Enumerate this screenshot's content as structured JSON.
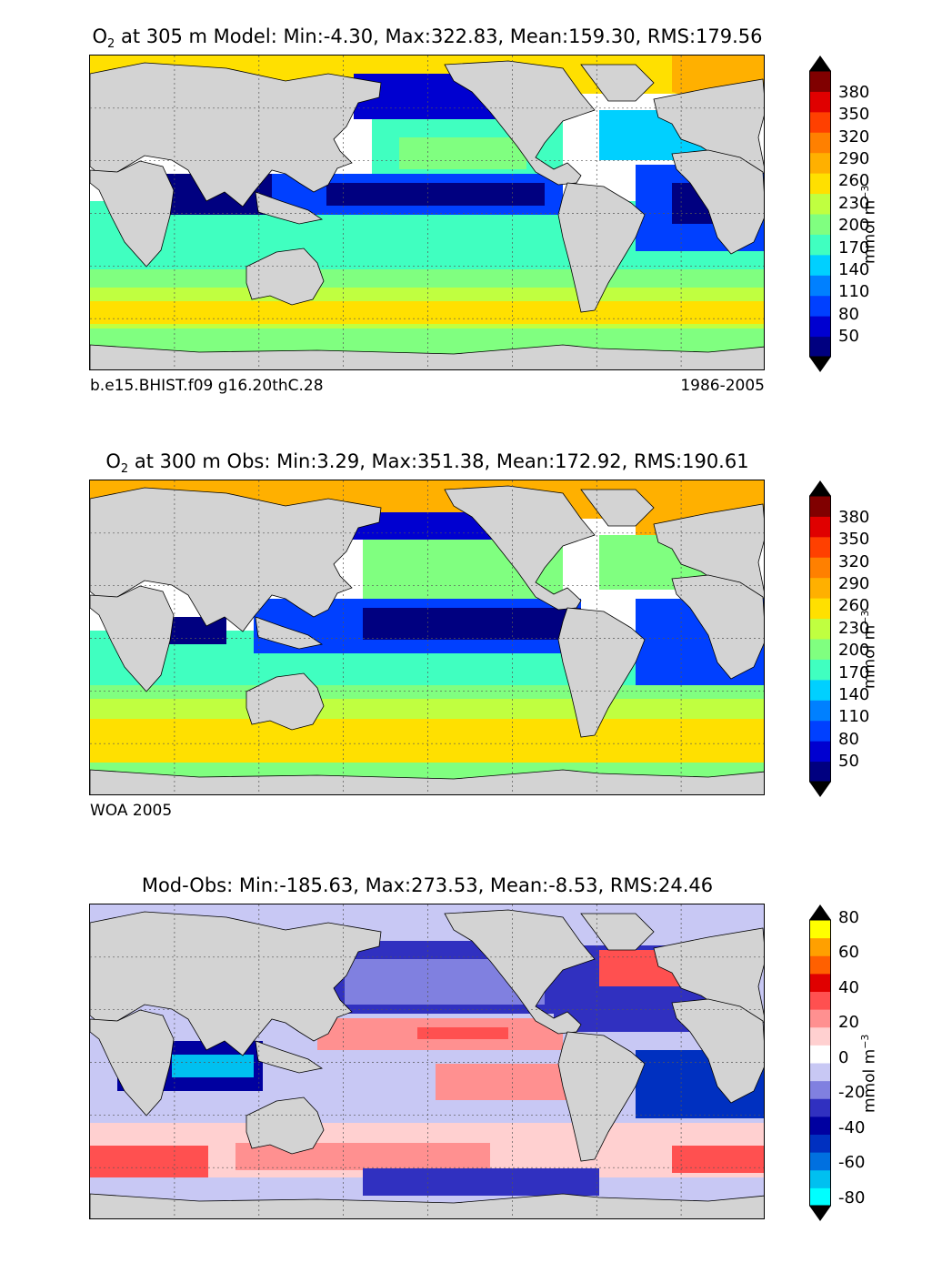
{
  "panels": [
    {
      "title_prefix": "O",
      "title_sub": "2",
      "title_rest": " at 305 m Model: Min:-4.30, Max:322.83, Mean:159.30, RMS:179.56",
      "footer_left": "b.e15.BHIST.f09 g16.20thC.28",
      "footer_right": "1986-2005",
      "colorbar_ticks": [
        "380",
        "350",
        "320",
        "290",
        "260",
        "230",
        "200",
        "170",
        "140",
        "110",
        "80",
        "50"
      ],
      "colorbar_unit": "mmol m",
      "colorbar_unit_exp": "−3",
      "colorbar_colors": [
        "#000080",
        "#0000d0",
        "#0040ff",
        "#0080ff",
        "#00d0ff",
        "#40ffc0",
        "#80ff80",
        "#c0ff40",
        "#ffe000",
        "#ffb000",
        "#ff8000",
        "#ff4000",
        "#e00000",
        "#800000"
      ]
    },
    {
      "title_prefix": "O",
      "title_sub": "2",
      "title_rest": " at 300 m Obs: Min:3.29, Max:351.38, Mean:172.92, RMS:190.61",
      "footer_left": "WOA 2005",
      "footer_right": "",
      "colorbar_ticks": [
        "380",
        "350",
        "320",
        "290",
        "260",
        "230",
        "200",
        "170",
        "140",
        "110",
        "80",
        "50"
      ],
      "colorbar_unit": "mmol m",
      "colorbar_unit_exp": "−3",
      "colorbar_colors": [
        "#000080",
        "#0000d0",
        "#0040ff",
        "#0080ff",
        "#00d0ff",
        "#40ffc0",
        "#80ff80",
        "#c0ff40",
        "#ffe000",
        "#ffb000",
        "#ff8000",
        "#ff4000",
        "#e00000",
        "#800000"
      ]
    },
    {
      "title_prefix": "",
      "title_sub": "",
      "title_rest": "Mod-Obs: Min:-185.63, Max:273.53, Mean:-8.53, RMS:24.46",
      "footer_left": "",
      "footer_right": "",
      "colorbar_ticks": [
        "80",
        "60",
        "40",
        "20",
        "0",
        "-20",
        "-40",
        "-60",
        "-80"
      ],
      "colorbar_unit": "mmol m",
      "colorbar_unit_exp": "−3",
      "colorbar_colors": [
        "#00ffff",
        "#00c0f0",
        "#0070e0",
        "#0030c0",
        "#0000a0",
        "#3030c0",
        "#8080e0",
        "#c8c8f4",
        "#ffffff",
        "#ffd0d0",
        "#ff9090",
        "#ff5050",
        "#e00000",
        "#ff6000",
        "#ffa000",
        "#ffff00"
      ]
    }
  ]
}
